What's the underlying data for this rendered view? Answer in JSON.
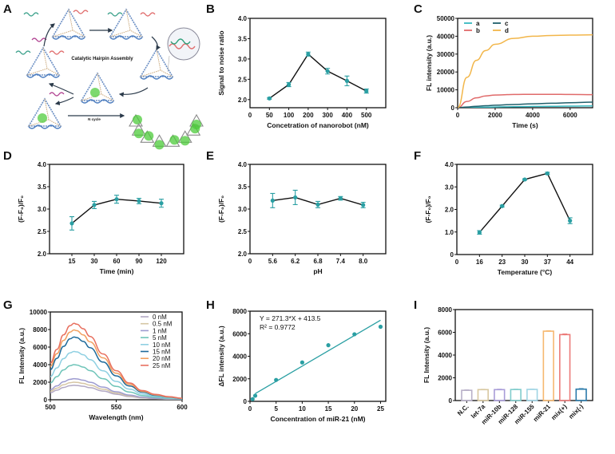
{
  "colors": {
    "marker": "#2a9fa3",
    "line": "#111111",
    "axis": "#111111"
  },
  "panel_a": {
    "letter": "A",
    "center_label": "Catalytic Hairpin Assembly",
    "cycle_label": "N cycle",
    "icons": [
      "dna-tetrahedron-icon",
      "hairpin-strand-icon",
      "cycle-arrow-icon",
      "magnified-inset-icon",
      "nanorobot-assembly-icon"
    ]
  },
  "chart_data": [
    {
      "id": "B",
      "letter": "B",
      "type": "line",
      "xlabel": "Concetration of nanorobot (nM)",
      "ylabel": "Signal to noise ratio",
      "categories": [
        "50",
        "100",
        "200",
        "300",
        "400",
        "500"
      ],
      "x_origin_label": "0",
      "ylim": [
        1.8,
        4.0
      ],
      "yticks": [
        "2.0",
        "2.5",
        "3.0",
        "3.5",
        "4.0"
      ],
      "values": [
        2.03,
        2.37,
        3.12,
        2.7,
        2.46,
        2.21
      ],
      "errors": [
        0.02,
        0.05,
        0.05,
        0.07,
        0.12,
        0.05
      ]
    },
    {
      "id": "C",
      "letter": "C",
      "type": "line",
      "xlabel": "Time (s)",
      "ylabel": "FL intensity (a.u.)",
      "xlim": [
        0,
        7200
      ],
      "xticks": [
        "0",
        "2000",
        "4000",
        "6000"
      ],
      "ylim": [
        0,
        50000
      ],
      "yticks": [
        "0",
        "10000",
        "20000",
        "30000",
        "40000",
        "50000"
      ],
      "legend": "top-left",
      "x": [
        0,
        500,
        1000,
        1500,
        2000,
        3000,
        4000,
        5000,
        6000,
        7200
      ],
      "series": [
        {
          "name": "a",
          "color": "#35b8bf",
          "values": [
            0,
            100,
            200,
            300,
            400,
            550,
            700,
            800,
            900,
            1000
          ]
        },
        {
          "name": "b",
          "color": "#e06a6a",
          "values": [
            0,
            3500,
            5500,
            6600,
            7100,
            7400,
            7500,
            7500,
            7400,
            7300
          ]
        },
        {
          "name": "c",
          "color": "#1f5f6b",
          "values": [
            0,
            400,
            800,
            1100,
            1400,
            1800,
            2200,
            2500,
            2800,
            3100
          ]
        },
        {
          "name": "d",
          "color": "#f2b64a",
          "values": [
            0,
            17000,
            26500,
            32000,
            35500,
            38800,
            40000,
            40400,
            40600,
            40800
          ]
        }
      ]
    },
    {
      "id": "D",
      "letter": "D",
      "type": "line",
      "xlabel": "Time (min)",
      "ylabel": "(F-F₀)/F₀",
      "categories": [
        "15",
        "30",
        "60",
        "90",
        "120"
      ],
      "ylim": [
        2.0,
        4.0
      ],
      "yticks": [
        "2.0",
        "2.5",
        "3.0",
        "3.5",
        "4.0"
      ],
      "values": [
        2.68,
        3.09,
        3.22,
        3.18,
        3.13
      ],
      "errors": [
        0.15,
        0.08,
        0.09,
        0.06,
        0.09
      ]
    },
    {
      "id": "E",
      "letter": "E",
      "type": "line",
      "xlabel": "pH",
      "ylabel": "(F-F₀)/F₀",
      "categories": [
        "5.6",
        "6.2",
        "6.8",
        "7.4",
        "8.0"
      ],
      "x_origin_label": "0",
      "ylim": [
        2.0,
        4.0
      ],
      "yticks": [
        "2.0",
        "2.5",
        "3.0",
        "3.5",
        "4.0"
      ],
      "values": [
        3.19,
        3.26,
        3.1,
        3.24,
        3.09
      ],
      "errors": [
        0.16,
        0.16,
        0.07,
        0.04,
        0.06
      ]
    },
    {
      "id": "F",
      "letter": "F",
      "type": "line",
      "xlabel": "Temperature (°C)",
      "ylabel": "(F-F₀)/F₀",
      "categories": [
        "16",
        "23",
        "30",
        "37",
        "44"
      ],
      "x_origin_label": "0",
      "ylim": [
        0,
        4.0
      ],
      "yticks": [
        "0",
        "1.0",
        "2.0",
        "3.0",
        "4.0"
      ],
      "values": [
        0.98,
        2.15,
        3.33,
        3.6,
        1.5
      ],
      "errors": [
        0.08,
        0.04,
        0.03,
        0.05,
        0.13
      ]
    },
    {
      "id": "G",
      "letter": "G",
      "type": "line",
      "xlabel": "Wavelength (nm)",
      "ylabel": "FL Intensity (a.u.)",
      "xlim": [
        500,
        600
      ],
      "xticks": [
        "500",
        "550",
        "600"
      ],
      "ylim": [
        0,
        10000
      ],
      "yticks": [
        "0",
        "2000",
        "4000",
        "6000",
        "8000",
        "10000"
      ],
      "legend": "top-right",
      "x": [
        500,
        505,
        510,
        515,
        518,
        520,
        525,
        530,
        540,
        550,
        560,
        570,
        580,
        590,
        600
      ],
      "series": [
        {
          "name": "0 nM",
          "color": "#b3a9c4",
          "values": [
            790,
            1090,
            1400,
            1600,
            1650,
            1630,
            1530,
            1370,
            990,
            630,
            360,
            200,
            115,
            65,
            35
          ]
        },
        {
          "name": "0.5 nM",
          "color": "#d6c6a4",
          "values": [
            960,
            1320,
            1700,
            1940,
            2000,
            1980,
            1860,
            1660,
            1200,
            760,
            440,
            240,
            140,
            80,
            40
          ]
        },
        {
          "name": "1 nM",
          "color": "#9d9bd0",
          "values": [
            1150,
            1580,
            2040,
            2330,
            2400,
            2380,
            2230,
            1990,
            1440,
            910,
            530,
            290,
            170,
            100,
            50
          ]
        },
        {
          "name": "5 nM",
          "color": "#6ec4b8",
          "values": [
            1920,
            2640,
            3400,
            3880,
            4000,
            3960,
            3720,
            3320,
            2400,
            1520,
            880,
            480,
            280,
            160,
            80
          ]
        },
        {
          "name": "10 nM",
          "color": "#8fd0e2",
          "values": [
            2640,
            3630,
            4680,
            5340,
            5500,
            5450,
            5120,
            4570,
            3300,
            2090,
            1210,
            660,
            385,
            220,
            110
          ]
        },
        {
          "name": "15 nM",
          "color": "#1e6a9a",
          "values": [
            3430,
            4720,
            6080,
            6940,
            7150,
            7080,
            6650,
            5930,
            4290,
            2720,
            1570,
            860,
            500,
            290,
            140
          ]
        },
        {
          "name": "20 nM",
          "color": "#f2a060",
          "values": [
            3820,
            5250,
            6760,
            7710,
            7950,
            7870,
            7390,
            6600,
            4770,
            3020,
            1750,
            950,
            560,
            320,
            160
          ]
        },
        {
          "name": "25 nM",
          "color": "#e8705f",
          "values": [
            4180,
            5740,
            7400,
            8440,
            8700,
            8610,
            8090,
            7220,
            5220,
            3310,
            1910,
            1040,
            610,
            350,
            170
          ]
        }
      ]
    },
    {
      "id": "H",
      "letter": "H",
      "type": "scatter",
      "xlabel": "Concentration of miR-21 (nM)",
      "ylabel": "ΔFL intensity (a.u.)",
      "xlim": [
        0,
        26
      ],
      "xticks": [
        "0",
        "5",
        "10",
        "15",
        "20",
        "25"
      ],
      "ylim": [
        0,
        8000
      ],
      "yticks": [
        "0",
        "2000",
        "4000",
        "6000",
        "8000"
      ],
      "x": [
        0.5,
        1,
        5,
        10,
        15,
        20,
        25
      ],
      "values": [
        200,
        500,
        1900,
        3450,
        4980,
        5950,
        6620
      ],
      "errors": [
        40,
        60,
        60,
        80,
        150,
        60,
        80
      ],
      "fit": {
        "slope": 271.3,
        "intercept": 413.5,
        "x_range": [
          1,
          25
        ],
        "color": "#2a9fa3"
      },
      "equation": "Y = 271.3*X + 413.5",
      "r2": "R² = 0.9772"
    },
    {
      "id": "I",
      "letter": "I",
      "type": "bar",
      "xlabel": "",
      "ylabel": "FL Intensity (a.u.)",
      "categories": [
        "N.C.",
        "let-7a",
        "miR-10b",
        "miR-128",
        "miR-155",
        "miR-21",
        "mix(+)",
        "mix(-)"
      ],
      "ylim": [
        0,
        8000
      ],
      "yticks": [
        "0",
        "2000",
        "4000",
        "6000",
        "8000"
      ],
      "values": [
        900,
        960,
        960,
        970,
        980,
        6100,
        5800,
        1000
      ],
      "errors": [
        40,
        30,
        40,
        30,
        30,
        40,
        60,
        50
      ],
      "colors": [
        "#b8b0c8",
        "#d8c8a0",
        "#a89cd8",
        "#80cccc",
        "#9fd4e4",
        "#f6b870",
        "#ec7a78",
        "#2a7aaa"
      ]
    }
  ]
}
